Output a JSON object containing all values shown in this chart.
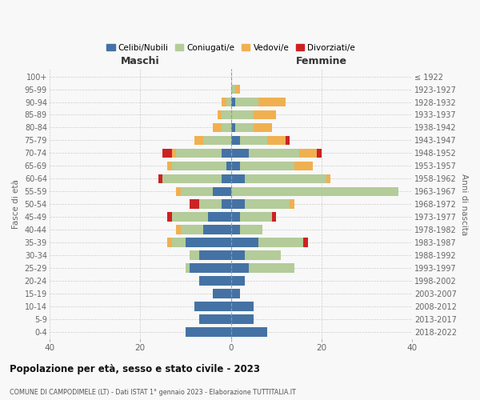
{
  "age_groups": [
    "0-4",
    "5-9",
    "10-14",
    "15-19",
    "20-24",
    "25-29",
    "30-34",
    "35-39",
    "40-44",
    "45-49",
    "50-54",
    "55-59",
    "60-64",
    "65-69",
    "70-74",
    "75-79",
    "80-84",
    "85-89",
    "90-94",
    "95-99",
    "100+"
  ],
  "birth_years": [
    "2018-2022",
    "2013-2017",
    "2008-2012",
    "2003-2007",
    "1998-2002",
    "1993-1997",
    "1988-1992",
    "1983-1987",
    "1978-1982",
    "1973-1977",
    "1968-1972",
    "1963-1967",
    "1958-1962",
    "1953-1957",
    "1948-1952",
    "1943-1947",
    "1938-1942",
    "1933-1937",
    "1928-1932",
    "1923-1927",
    "≤ 1922"
  ],
  "maschi": {
    "celibe": [
      10,
      7,
      8,
      4,
      7,
      9,
      7,
      10,
      6,
      5,
      2,
      4,
      2,
      1,
      2,
      0,
      0,
      0,
      0,
      0,
      0
    ],
    "coniugato": [
      0,
      0,
      0,
      0,
      0,
      1,
      2,
      3,
      5,
      8,
      5,
      7,
      13,
      12,
      10,
      6,
      2,
      2,
      1,
      0,
      0
    ],
    "vedovo": [
      0,
      0,
      0,
      0,
      0,
      0,
      0,
      1,
      1,
      0,
      0,
      1,
      0,
      1,
      1,
      2,
      2,
      1,
      1,
      0,
      0
    ],
    "divorziato": [
      0,
      0,
      0,
      0,
      0,
      0,
      0,
      0,
      0,
      1,
      2,
      0,
      1,
      0,
      2,
      0,
      0,
      0,
      0,
      0,
      0
    ]
  },
  "femmine": {
    "nubile": [
      8,
      5,
      5,
      2,
      3,
      4,
      3,
      6,
      2,
      2,
      3,
      0,
      3,
      2,
      4,
      2,
      1,
      0,
      1,
      0,
      0
    ],
    "coniugata": [
      0,
      0,
      0,
      0,
      0,
      10,
      8,
      10,
      5,
      7,
      10,
      37,
      18,
      12,
      11,
      6,
      4,
      5,
      5,
      1,
      0
    ],
    "vedova": [
      0,
      0,
      0,
      0,
      0,
      0,
      0,
      0,
      0,
      0,
      1,
      0,
      1,
      4,
      4,
      4,
      4,
      5,
      6,
      1,
      0
    ],
    "divorziata": [
      0,
      0,
      0,
      0,
      0,
      0,
      0,
      1,
      0,
      1,
      0,
      0,
      0,
      0,
      1,
      1,
      0,
      0,
      0,
      0,
      0
    ]
  },
  "colors": {
    "celibe": "#4472a4",
    "coniugato": "#b3cc99",
    "vedovo": "#f0b050",
    "divorziato": "#cc2222"
  },
  "xlim": 40,
  "title": "Popolazione per età, sesso e stato civile - 2023",
  "subtitle": "COMUNE DI CAMPODIMELE (LT) - Dati ISTAT 1° gennaio 2023 - Elaborazione TUTTITALIA.IT",
  "ylabel_left": "Fasce di età",
  "ylabel_right": "Anni di nascita",
  "xlabel_left": "Maschi",
  "xlabel_right": "Femmine",
  "bg_color": "#f8f8f8",
  "legend_labels": [
    "Celibi/Nubili",
    "Coniugati/e",
    "Vedovi/e",
    "Divorziati/e"
  ]
}
